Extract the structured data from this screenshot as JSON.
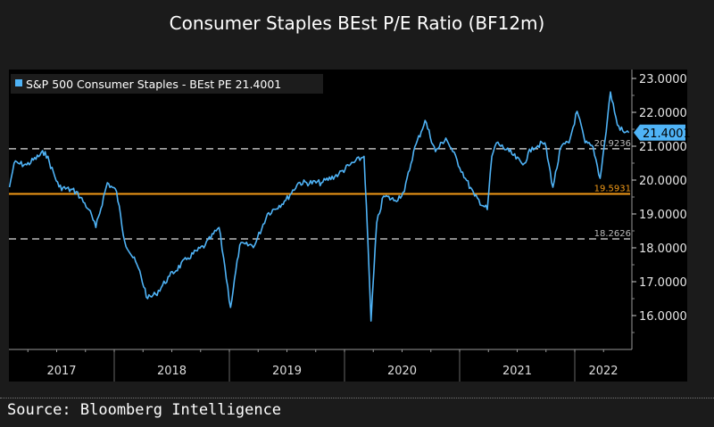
{
  "chart_data": {
    "type": "line",
    "title": "Consumer Staples BEst P/E Ratio (BF12m)",
    "source": "Source: Bloomberg Intelligence",
    "xlabel": "",
    "ylabel": "",
    "ylim": [
      15.4,
      23.2
    ],
    "xlim": [
      2017.08,
      2022.54
    ],
    "yticks": [
      "23.0000",
      "22.0000",
      "21.0000",
      "20.0000",
      "19.0000",
      "18.0000",
      "17.0000",
      "16.0000"
    ],
    "ytick_values": [
      23,
      22,
      21,
      20,
      19,
      18,
      17,
      16
    ],
    "xticks": [
      "2017",
      "2018",
      "2019",
      "2020",
      "2021",
      "2022"
    ],
    "legend": {
      "label": "S&P 500 Consumer Staples - BEst PE 21.4001",
      "placement": "top-left"
    },
    "last_value_label": "21.4001",
    "series": [
      {
        "name": "S&P 500 Consumer Staples - BEst PE",
        "color": "#4fb3f6",
        "x": [
          2017.09,
          2017.13,
          2017.24,
          2017.4,
          2017.52,
          2017.67,
          2017.78,
          2017.84,
          2017.94,
          2018.02,
          2018.09,
          2018.21,
          2018.29,
          2018.36,
          2018.48,
          2018.64,
          2018.79,
          2018.91,
          2018.95,
          2019.01,
          2019.09,
          2019.22,
          2019.33,
          2019.49,
          2019.6,
          2019.8,
          2019.95,
          2020.05,
          2020.17,
          2020.19,
          2020.23,
          2020.28,
          2020.34,
          2020.44,
          2020.52,
          2020.6,
          2020.7,
          2020.79,
          2020.88,
          2020.94,
          2021.05,
          2021.13,
          2021.24,
          2021.28,
          2021.32,
          2021.43,
          2021.55,
          2021.63,
          2021.74,
          2021.81,
          2021.88,
          2021.95,
          2022.02,
          2022.09,
          2022.16,
          2022.22,
          2022.26,
          2022.31,
          2022.37,
          2022.43,
          2022.47
        ],
        "y": [
          19.79,
          20.5,
          20.45,
          20.84,
          19.8,
          19.66,
          19.13,
          18.6,
          19.92,
          19.66,
          18.2,
          17.4,
          16.5,
          16.63,
          17.16,
          17.7,
          18.08,
          18.6,
          17.7,
          16.24,
          18.08,
          18.08,
          19.0,
          19.4,
          19.92,
          19.92,
          20.18,
          20.45,
          20.7,
          19.26,
          15.84,
          18.74,
          19.53,
          19.4,
          19.66,
          20.84,
          21.76,
          20.84,
          21.24,
          20.84,
          20.05,
          19.53,
          19.13,
          20.7,
          21.1,
          20.84,
          20.45,
          20.97,
          21.1,
          19.79,
          20.97,
          21.1,
          22.03,
          21.1,
          20.97,
          20.05,
          21.1,
          22.6,
          21.63,
          21.4,
          21.4
        ]
      }
    ],
    "reference_lines": [
      {
        "value": 20.9236,
        "label": "20.9236",
        "style": "dashed",
        "color": "#bbbbbb"
      },
      {
        "value": 19.5931,
        "label": "19.5931",
        "style": "solid",
        "color": "#f29a17"
      },
      {
        "value": 18.2626,
        "label": "18.2626",
        "style": "dashed",
        "color": "#bbbbbb"
      }
    ]
  }
}
